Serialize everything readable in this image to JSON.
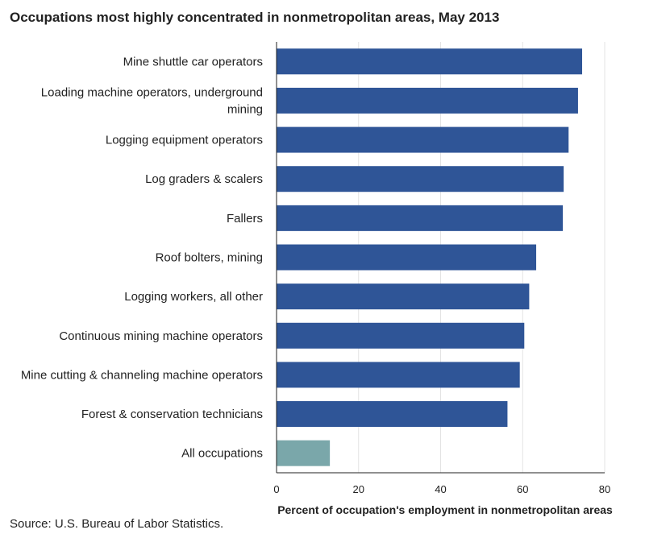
{
  "chart_data": {
    "type": "bar",
    "orientation": "horizontal",
    "title": "Occupations most highly concentrated in nonmetropolitan areas, May 2013",
    "categories": [
      [
        "Mine shuttle car operators"
      ],
      [
        "Loading machine operators, underground",
        "mining"
      ],
      [
        "Logging equipment operators"
      ],
      [
        "Log graders & scalers"
      ],
      [
        "Fallers"
      ],
      [
        "Roof bolters, mining"
      ],
      [
        "Logging workers, all other"
      ],
      [
        "Continuous mining machine operators"
      ],
      [
        "Mine cutting & channeling machine operators"
      ],
      [
        "Forest & conservation technicians"
      ],
      [
        "All occupations"
      ]
    ],
    "values": [
      74.5,
      73.5,
      71.2,
      70.0,
      69.8,
      63.3,
      61.6,
      60.4,
      59.3,
      56.3,
      13.0
    ],
    "colors": [
      "#2f5597",
      "#2f5597",
      "#2f5597",
      "#2f5597",
      "#2f5597",
      "#2f5597",
      "#2f5597",
      "#2f5597",
      "#2f5597",
      "#2f5597",
      "#7aa7aa"
    ],
    "xlabel": "Percent of occupation's employment in nonmetropolitan areas",
    "ylabel": "",
    "xlim": [
      0,
      80
    ],
    "xticks": [
      0,
      20,
      40,
      60,
      80
    ],
    "grid": "vertical"
  },
  "source": "Source: U.S. Bureau of Labor Statistics."
}
